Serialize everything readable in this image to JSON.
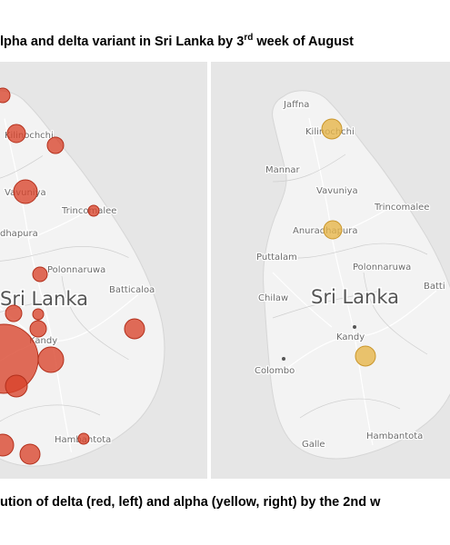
{
  "title": {
    "before": "lpha and delta variant in Sri Lanka by 3",
    "superscript": "rd",
    "after": " week of August"
  },
  "maps": [
    {
      "labels": [
        "Kilinochchi",
        "Vavuniya",
        "Trincomalee",
        "dhapura",
        "Polonnaruwa",
        "Sri Lanka",
        "Batticaloa",
        "Kandy",
        "Hambantota"
      ]
    },
    {
      "labels": [
        "Jaffna",
        "Kilinochchi",
        "Mannar",
        "Vavuniya",
        "Trincomalee",
        "Anuradhapura",
        "Puttalam",
        "Polonnaruwa",
        "Chilaw",
        "Sri Lanka",
        "Batti",
        "Kandy",
        "Colombo",
        "Hambantota",
        "Galle"
      ]
    }
  ],
  "caption": "ution of delta (red, left) and alpha (yellow, right) by the 2nd w"
}
